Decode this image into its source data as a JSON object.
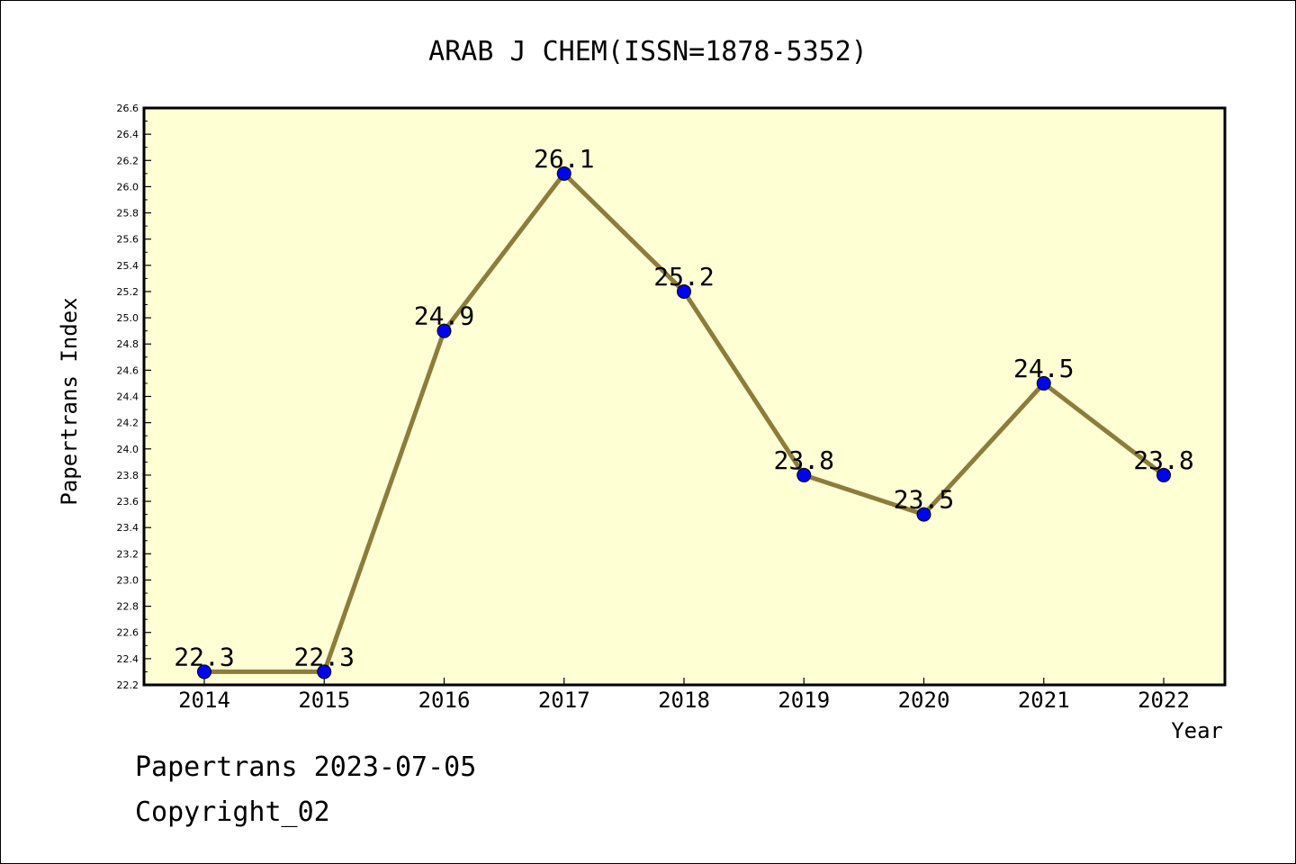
{
  "chart_data": {
    "type": "line",
    "title": "ARAB J CHEM(ISSN=1878-5352)",
    "xlabel": "Year",
    "ylabel": "Papertrans Index",
    "categories": [
      "2014",
      "2015",
      "2016",
      "2017",
      "2018",
      "2019",
      "2020",
      "2021",
      "2022"
    ],
    "series": [
      {
        "values": [
          22.3,
          22.3,
          24.9,
          26.1,
          25.2,
          23.8,
          23.5,
          24.5,
          23.8
        ],
        "labels": [
          "22.3",
          "22.3",
          "24.9",
          "26.1",
          "25.2",
          "23.8",
          "23.5",
          "24.5",
          "23.8"
        ],
        "line_color": "#8b7d3a",
        "marker_color": "#0000ff"
      }
    ],
    "ylim": [
      22.2,
      26.6
    ],
    "yticks": [
      "22.2",
      "22.4",
      "22.6",
      "22.8",
      "23.0",
      "23.2",
      "23.4",
      "23.6",
      "23.8",
      "24.0",
      "24.2",
      "24.4",
      "24.6",
      "24.8",
      "25.0",
      "25.2",
      "25.4",
      "25.6",
      "25.8",
      "26.0",
      "26.2",
      "26.4",
      "26.6"
    ],
    "plot_background": "#ffffd4",
    "grid": false,
    "legend": "none"
  },
  "footer": {
    "line1": "Papertrans 2023-07-05",
    "line2": "Copyright_02"
  }
}
